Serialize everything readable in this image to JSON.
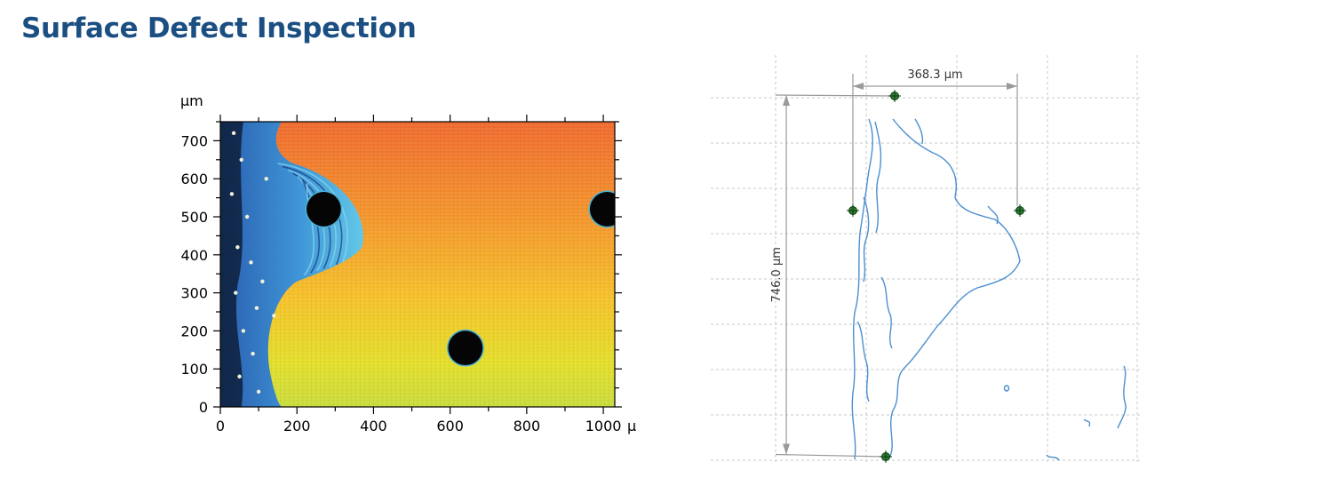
{
  "page": {
    "title": "Surface Defect Inspection"
  },
  "chart_data": [
    {
      "type": "heatmap",
      "x_unit_label": "µ",
      "y_unit_label": "µm",
      "xlim": [
        0,
        1030
      ],
      "ylim": [
        0,
        750
      ],
      "x_ticks": [
        0,
        200,
        400,
        600,
        800,
        1000
      ],
      "y_ticks": [
        0,
        100,
        200,
        300,
        400,
        500,
        600,
        700
      ],
      "x_tick_labels": [
        "0",
        "200",
        "400",
        "600",
        "800",
        "1000"
      ],
      "y_tick_labels": [
        "0",
        "100",
        "200",
        "300",
        "400",
        "500",
        "600",
        "700"
      ],
      "grid": false,
      "legend": "none",
      "colors": {
        "high": "#f06a2e",
        "mid": "#f5b22a",
        "low": "#dfe22a",
        "edge_region": "#2f7fc8",
        "edge_region_light": "#5cc3e6",
        "dark": "#0d1f3a",
        "defect": "#050505",
        "defect_rim": "#49b3d8"
      },
      "defects": [
        {
          "x": 270,
          "y": 520,
          "r": 45
        },
        {
          "x": 1010,
          "y": 520,
          "r": 45
        },
        {
          "x": 640,
          "y": 155,
          "r": 45
        }
      ]
    },
    {
      "type": "scatter",
      "description_kind": "contour-measurement",
      "grid": true,
      "grid_style": "dashed",
      "xlim": [
        0,
        480
      ],
      "ylim": [
        0,
        900
      ],
      "colors": {
        "contour": "#4a8fd0",
        "marker": "#1b5e20",
        "measure": "#9a9a9a",
        "grid": "#c8c8c8"
      },
      "measurements": [
        {
          "label": "368.3 µm",
          "orientation": "horizontal",
          "from": [
            160,
            840
          ],
          "to": [
            345,
            840
          ]
        },
        {
          "label": "746.0 µm",
          "orientation": "vertical",
          "from": [
            85,
            820
          ],
          "to": [
            85,
            11
          ]
        }
      ],
      "markers": [
        {
          "x": 207,
          "y": 818
        },
        {
          "x": 160,
          "y": 560
        },
        {
          "x": 348,
          "y": 560
        },
        {
          "x": 197,
          "y": 6
        }
      ]
    }
  ]
}
